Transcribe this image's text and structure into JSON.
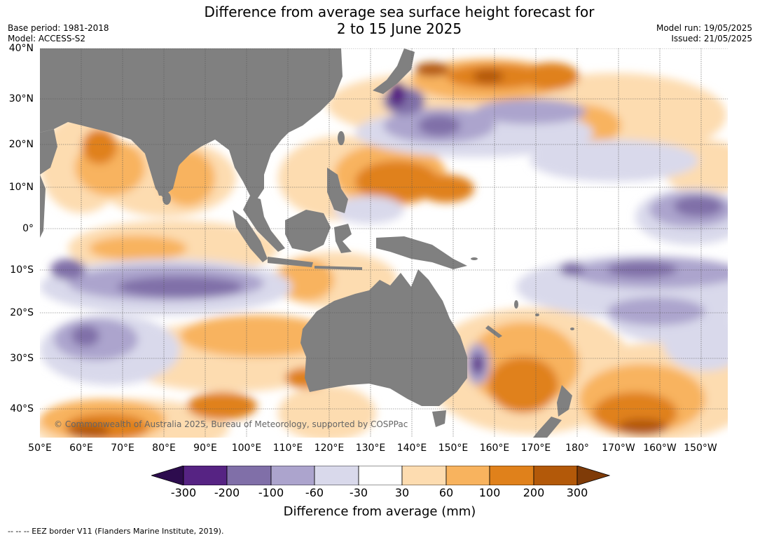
{
  "header": {
    "title_line1": "Difference from average sea surface height forecast for",
    "title_line2": "2 to 15 June 2025",
    "base_period": "Base period: 1981-2018",
    "model": "Model: ACCESS-S2",
    "model_run": "Model run: 19/05/2025",
    "issued": "Issued: 21/05/2025"
  },
  "map": {
    "lat_labels": [
      "40°N",
      "30°N",
      "20°N",
      "10°N",
      "0°",
      "10°S",
      "20°S",
      "30°S",
      "40°S"
    ],
    "lon_labels": [
      "50°E",
      "60°E",
      "70°E",
      "80°E",
      "90°E",
      "100°E",
      "110°E",
      "120°E",
      "130°E",
      "140°E",
      "150°E",
      "160°E",
      "170°E",
      "180°",
      "170°W",
      "160°W",
      "150°W"
    ],
    "copyright": "© Commonwealth of Australia 2025, Bureau of Meteorology, supported by COSPPac",
    "colors": {
      "land": "#808080",
      "ocean": "#ffffff",
      "grid": "#555555"
    }
  },
  "colorbar": {
    "labels": [
      "-300",
      "-200",
      "-100",
      "-60",
      "-30",
      "30",
      "60",
      "100",
      "200",
      "300"
    ],
    "title": "Difference from average (mm)",
    "colors": [
      "#2d0c4e",
      "#562383",
      "#806fa8",
      "#aca4cd",
      "#d9d9eb",
      "#ffffff",
      "#fddcb0",
      "#f8b35e",
      "#e0811b",
      "#b35909",
      "#7f3b08"
    ]
  },
  "footer": {
    "eez_text": "--  --  -- EEZ border V11 (Flanders Marine Institute, 2019)."
  }
}
